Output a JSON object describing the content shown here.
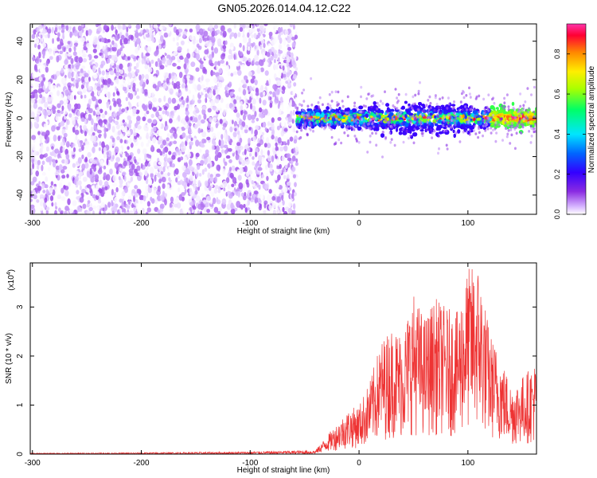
{
  "title": "GN05.2026.014.04.12.C22",
  "chart_data": [
    {
      "type": "heatmap",
      "xlabel": "Height of straight line (km)",
      "ylabel": "Frequency (Hz)",
      "xlim": [
        -302,
        163
      ],
      "ylim": [
        -50,
        49
      ],
      "xticks": [
        -300,
        -200,
        -100,
        0,
        100
      ],
      "yticks": [
        -40,
        -20,
        0,
        20,
        40
      ],
      "grid": false,
      "colorbar": {
        "label": "Normalized spectral amplitude",
        "range": [
          0,
          0.95
        ],
        "ticks": [
          0.0,
          0.2,
          0.4,
          0.6,
          0.8
        ],
        "colormap": "rainbow (magenta-violet-blue-cyan-green-yellow-orange-red)"
      },
      "regions": [
        {
          "x_range": [
            -302,
            -57
          ],
          "y_range": [
            -50,
            49
          ],
          "amplitude_range": [
            0.0,
            0.1
          ]
        },
        {
          "x_range": [
            -57,
            163
          ],
          "y_range": [
            -5,
            5
          ],
          "amplitude_range": [
            0.2,
            0.95
          ]
        }
      ]
    },
    {
      "type": "line",
      "xlabel": "Height of straight line (km)",
      "ylabel": "SNR (10 * v/v)",
      "y_multiplier_label": "(x10",
      "y_multiplier_exp": "4",
      "xlim": [
        -302,
        163
      ],
      "ylim": [
        0,
        3.9
      ],
      "xticks": [
        -300,
        -200,
        -100,
        0,
        100
      ],
      "yticks": [
        0,
        1,
        2,
        3
      ],
      "color": "#ee3333",
      "series": [
        {
          "x": [
            -302,
            -200,
            -100,
            -40,
            -25,
            -10,
            0,
            10,
            20,
            30,
            40,
            50,
            60,
            70,
            80,
            90,
            100,
            110,
            120,
            130,
            140,
            150,
            163
          ],
          "y": [
            0.02,
            0.03,
            0.05,
            0.08,
            0.5,
            0.9,
            1.0,
            1.5,
            2.3,
            2.6,
            2.5,
            3.3,
            2.8,
            3.2,
            3.0,
            2.9,
            3.8,
            3.9,
            2.5,
            2.0,
            1.4,
            1.6,
            1.9
          ]
        }
      ]
    }
  ]
}
